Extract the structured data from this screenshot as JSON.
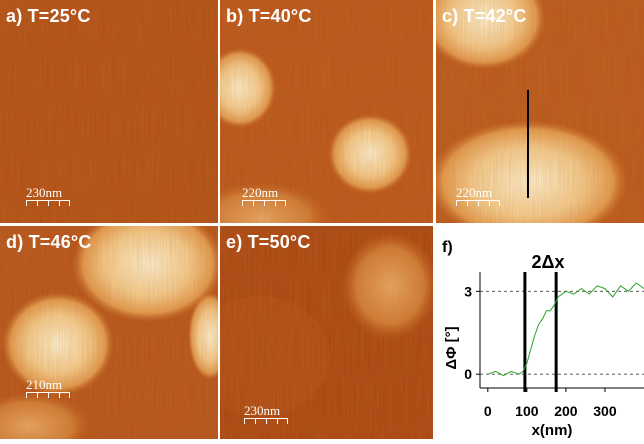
{
  "panels": [
    {
      "label": "a) T=25°C",
      "scale": "230nm"
    },
    {
      "label": "b) T=40°C",
      "scale": "220nm"
    },
    {
      "label": "c) T=42°C",
      "scale": "220nm"
    },
    {
      "label": "d) T=46°C",
      "scale": "210nm"
    },
    {
      "label": "e) T=50°C",
      "scale": "230nm"
    }
  ],
  "chart_data": {
    "type": "line",
    "panel_label": "f)",
    "annotation": "2Δx",
    "xlabel": "x(nm)",
    "ylabel": "ΔΦ [°]",
    "xticks": [
      0,
      100,
      200,
      300
    ],
    "yticks": [
      0,
      3
    ],
    "xlim": [
      -20,
      400
    ],
    "ylim": [
      -0.5,
      3.7
    ],
    "vlines": [
      95,
      175
    ],
    "series": [
      {
        "color": "#2ca02c",
        "x": [
          0,
          20,
          40,
          60,
          80,
          90,
          100,
          110,
          120,
          130,
          140,
          150,
          160,
          170,
          180,
          200,
          220,
          240,
          260,
          280,
          300,
          320,
          340,
          360,
          380,
          400
        ],
        "y": [
          0.0,
          0.1,
          -0.05,
          0.1,
          0.0,
          0.1,
          0.4,
          0.9,
          1.4,
          1.8,
          2.0,
          2.3,
          2.3,
          2.5,
          2.8,
          3.0,
          2.9,
          3.1,
          2.9,
          3.2,
          3.1,
          2.8,
          3.2,
          3.0,
          3.3,
          3.1
        ]
      }
    ]
  },
  "colors": {
    "afm_dark": "#a9420f",
    "afm_mid": "#c96c28",
    "afm_light": "#fff2cf"
  }
}
